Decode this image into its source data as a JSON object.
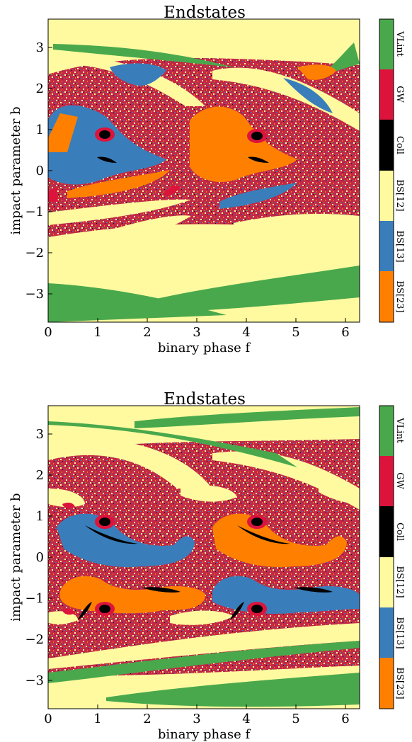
{
  "colors": {
    "VLint": "#4aa84c",
    "GW": "#dc143c",
    "Coll": "#000000",
    "BS12": "#fffaa0",
    "BS13": "#3a7dbb",
    "BS23": "#ff8000"
  },
  "chart_data": [
    {
      "type": "heatmap",
      "title": "Endstates",
      "xlabel": "binary phase f",
      "ylabel": "impact parameter b",
      "xlim": [
        0,
        6.283
      ],
      "ylim": [
        -3.7,
        3.7
      ],
      "xticks": [
        "0",
        "1",
        "2",
        "3",
        "4",
        "5",
        "6"
      ],
      "yticks": [
        "3",
        "2",
        "1",
        "0",
        "−1",
        "−2",
        "−3"
      ],
      "colorbar": [
        "VLint",
        "GW",
        "Coll",
        "BS[12]",
        "BS[13]",
        "BS[23]"
      ],
      "grid": false
    },
    {
      "type": "heatmap",
      "title": "Endstates",
      "xlabel": "binary phase f",
      "ylabel": "impact parameter b",
      "xlim": [
        0,
        6.283
      ],
      "ylim": [
        -3.7,
        3.7
      ],
      "xticks": [
        "0",
        "1",
        "2",
        "3",
        "4",
        "5",
        "6"
      ],
      "yticks": [
        "3",
        "2",
        "1",
        "0",
        "−1",
        "−2",
        "−3"
      ],
      "colorbar": [
        "VLint",
        "GW",
        "Coll",
        "BS[12]",
        "BS[13]",
        "BS[23]"
      ],
      "grid": false
    }
  ]
}
